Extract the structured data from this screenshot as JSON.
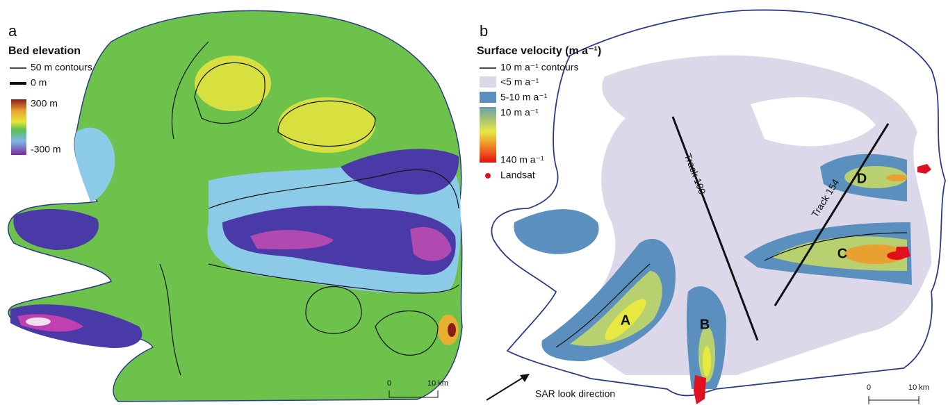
{
  "panels": [
    {
      "label": "a",
      "legend": {
        "title": "Bed elevation",
        "items": [
          "50 m contours",
          "0 m"
        ],
        "colorbar": [
          "300 m",
          "-300 m"
        ]
      },
      "scale_bar": [
        "0",
        "10 km"
      ]
    },
    {
      "label": "b",
      "legend": {
        "title": "Surface velocity (m a⁻¹)",
        "items": [
          "10 m a⁻¹ contours",
          "<5 m a⁻¹",
          "5-10 m a⁻¹"
        ],
        "colorbar": [
          "10 m a⁻¹",
          "140 m a⁻¹"
        ],
        "points": "Landsat"
      },
      "tracks": [
        "Track 100",
        "Track 154"
      ],
      "streams": [
        "A",
        "B",
        "C",
        "D"
      ],
      "scale_bar": [
        "0",
        "10 km"
      ],
      "look_direction": "SAR look direction"
    }
  ]
}
